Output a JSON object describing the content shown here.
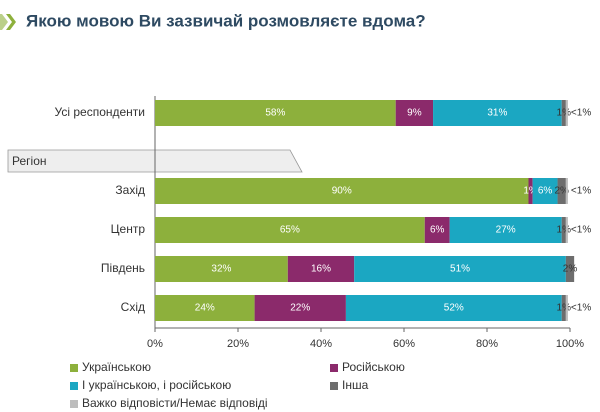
{
  "chart_data": {
    "type": "bar",
    "orientation": "horizontal",
    "stacked": true,
    "title": "Якою мовою Ви зазвичай розмовляєте вдома?",
    "group_label": "Регіон",
    "categories": [
      "Усі респонденти",
      "Захід",
      "Центр",
      "Південь",
      "Схід"
    ],
    "series": [
      {
        "name": "Українською",
        "color": "#8db03c",
        "values": [
          58,
          90,
          65,
          32,
          24
        ],
        "value_labels": [
          "58%",
          "90%",
          "65%",
          "32%",
          "24%"
        ]
      },
      {
        "name": "Російською",
        "color": "#8b2a6b",
        "values": [
          9,
          1,
          6,
          16,
          22
        ],
        "value_labels": [
          "9%",
          "1%",
          "6%",
          "16%",
          "22%"
        ]
      },
      {
        "name": "І українською, і російською",
        "color": "#1ba7c2",
        "values": [
          31,
          6,
          27,
          51,
          52
        ],
        "value_labels": [
          "31%",
          "6%",
          "27%",
          "51%",
          "52%"
        ]
      },
      {
        "name": "Інша",
        "color": "#6d6d6d",
        "values": [
          1,
          2,
          1,
          2,
          1
        ],
        "value_labels": [
          "1%",
          "2%",
          "1%",
          "2%",
          "1%"
        ]
      },
      {
        "name": "Важко відповісти/Немає відповіді",
        "color": "#bdbdbd",
        "values": [
          0.5,
          0.5,
          0.5,
          null,
          0.5
        ],
        "value_labels": [
          "<1%",
          "<1%",
          "<1%",
          null,
          "<1%"
        ]
      }
    ],
    "xlim": [
      0,
      100
    ],
    "xticks": [
      {
        "value": 0,
        "label": "0%"
      },
      {
        "value": 20,
        "label": "20%"
      },
      {
        "value": 40,
        "label": "40%"
      },
      {
        "value": 60,
        "label": "60%"
      },
      {
        "value": 80,
        "label": "80%"
      },
      {
        "value": 100,
        "label": "100%"
      }
    ]
  }
}
